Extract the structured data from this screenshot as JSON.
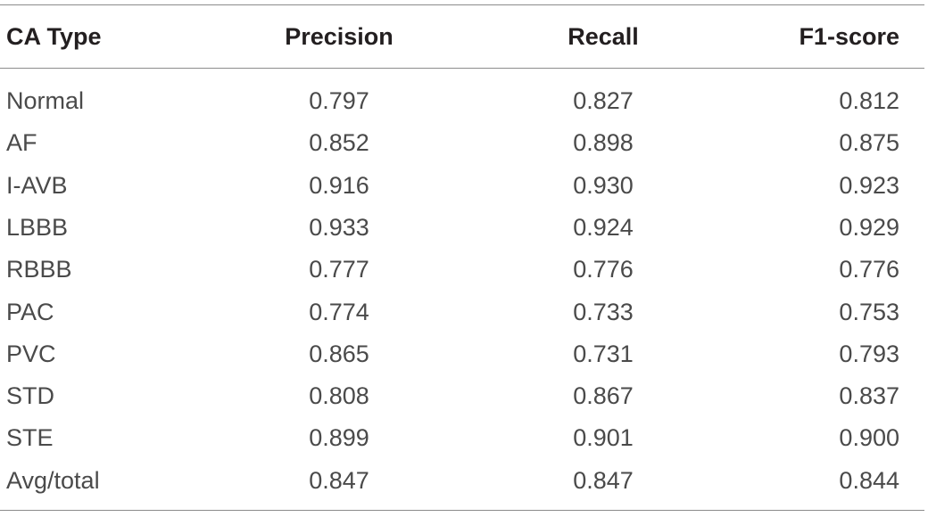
{
  "table": {
    "columns": [
      "CA Type",
      "Precision",
      "Recall",
      "F1-score"
    ],
    "rows": [
      [
        "Normal",
        "0.797",
        "0.827",
        "0.812"
      ],
      [
        "AF",
        "0.852",
        "0.898",
        "0.875"
      ],
      [
        "I-AVB",
        "0.916",
        "0.930",
        "0.923"
      ],
      [
        "LBBB",
        "0.933",
        "0.924",
        "0.929"
      ],
      [
        "RBBB",
        "0.777",
        "0.776",
        "0.776"
      ],
      [
        "PAC",
        "0.774",
        "0.733",
        "0.753"
      ],
      [
        "PVC",
        "0.865",
        "0.731",
        "0.793"
      ],
      [
        "STD",
        "0.808",
        "0.867",
        "0.837"
      ],
      [
        "STE",
        "0.899",
        "0.901",
        "0.900"
      ],
      [
        "Avg/total",
        "0.847",
        "0.847",
        "0.844"
      ]
    ]
  }
}
